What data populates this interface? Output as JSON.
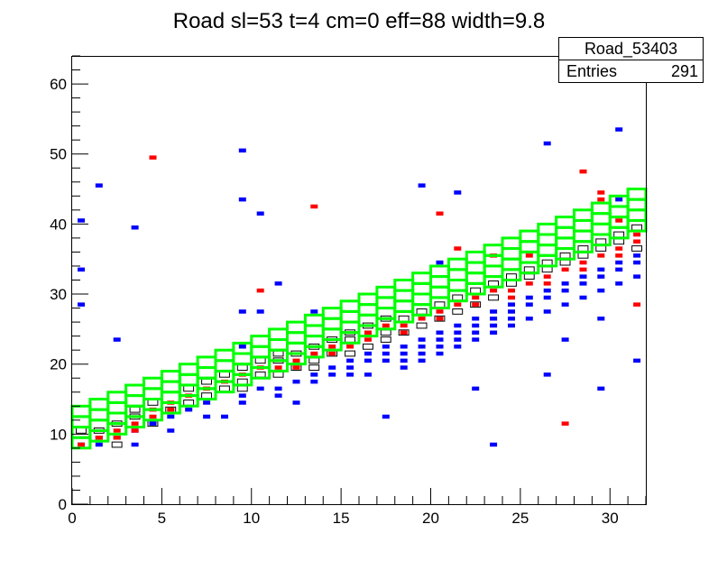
{
  "chart_data": {
    "type": "heatmap",
    "title": "Road sl=53 t=4 cm=0 eff=88 width=9.8",
    "xlabel": "",
    "ylabel": "",
    "xlim": [
      0,
      32
    ],
    "ylim": [
      0,
      64
    ],
    "x_ticks": [
      "0",
      "5",
      "10",
      "15",
      "20",
      "25",
      "30"
    ],
    "y_ticks": [
      "0",
      "10",
      "20",
      "30",
      "40",
      "50",
      "60"
    ],
    "grid": false,
    "stats_box": {
      "name": "Road_53403",
      "entries_label": "Entries",
      "entries_value": "291",
      "placement": "top-right"
    },
    "colors": {
      "road": "#00ff00",
      "blue_hist": "#0000ff",
      "red_hist": "#ff0000",
      "black_hist": "#000000",
      "frame": "#000000"
    },
    "road_band": {
      "start": 8,
      "slope": 1.0,
      "ncells": 4,
      "cell_height": 1.5
    },
    "blue_cells": [
      [
        0,
        40.5
      ],
      [
        0,
        33.5
      ],
      [
        0,
        28.5
      ],
      [
        1,
        45.5
      ],
      [
        2,
        23.5
      ],
      [
        3,
        39.5
      ],
      [
        9,
        50.5
      ],
      [
        9,
        43.5
      ],
      [
        9,
        27.5
      ],
      [
        9,
        22.5
      ],
      [
        10,
        41.5
      ],
      [
        10,
        27.5
      ],
      [
        11,
        31.5
      ],
      [
        13,
        27.5
      ],
      [
        17,
        12.5
      ],
      [
        19,
        45.5
      ],
      [
        20,
        34.5
      ],
      [
        21,
        44.5
      ],
      [
        22,
        16.5
      ],
      [
        23,
        8.5
      ],
      [
        26,
        51.5
      ],
      [
        26,
        18.5
      ],
      [
        27,
        23.5
      ],
      [
        29,
        16.5
      ],
      [
        29,
        26.5
      ],
      [
        30,
        53.5
      ],
      [
        30,
        43.5
      ],
      [
        31,
        20.5
      ],
      [
        0,
        8.5
      ],
      [
        1,
        8.5
      ],
      [
        1,
        9.5
      ],
      [
        2,
        9.5
      ],
      [
        3,
        10.5
      ],
      [
        4,
        11.5
      ],
      [
        5,
        12.5
      ],
      [
        6,
        13.5
      ],
      [
        7,
        14.5
      ],
      [
        8,
        12.5
      ],
      [
        9,
        15.5
      ],
      [
        10,
        16.5
      ],
      [
        11,
        16.5
      ],
      [
        12,
        17.5
      ],
      [
        13,
        18.5
      ],
      [
        14,
        19.5
      ],
      [
        15,
        20.5
      ],
      [
        16,
        21.5
      ],
      [
        17,
        22.5
      ],
      [
        18,
        22.5
      ],
      [
        19,
        23.5
      ],
      [
        20,
        24.5
      ],
      [
        21,
        25.5
      ],
      [
        22,
        26.5
      ],
      [
        23,
        27.5
      ],
      [
        24,
        28.5
      ],
      [
        25,
        29.5
      ],
      [
        26,
        30.5
      ],
      [
        27,
        31.5
      ],
      [
        28,
        32.5
      ],
      [
        29,
        33.5
      ],
      [
        30,
        34.5
      ],
      [
        31,
        35.5
      ],
      [
        15,
        19.5
      ],
      [
        16,
        20.5
      ],
      [
        17,
        21.5
      ],
      [
        18,
        21.5
      ],
      [
        19,
        22.5
      ],
      [
        20,
        23.5
      ],
      [
        21,
        24.5
      ],
      [
        22,
        25.5
      ],
      [
        23,
        26.5
      ],
      [
        24,
        27.5
      ],
      [
        17,
        20.5
      ],
      [
        18,
        20.5
      ],
      [
        19,
        21.5
      ],
      [
        20,
        22.5
      ],
      [
        21,
        23.5
      ],
      [
        22,
        24.5
      ],
      [
        23,
        25.5
      ],
      [
        24,
        26.5
      ],
      [
        25,
        28.5
      ],
      [
        26,
        29.5
      ],
      [
        27,
        30.5
      ],
      [
        28,
        31.5
      ],
      [
        29,
        32.5
      ],
      [
        30,
        33.5
      ],
      [
        31,
        34.5
      ],
      [
        16,
        18.5
      ],
      [
        18,
        19.5
      ],
      [
        20,
        21.5
      ],
      [
        22,
        23.5
      ],
      [
        24,
        25.5
      ],
      [
        3,
        8.5
      ],
      [
        5,
        10.5
      ],
      [
        7,
        12.5
      ],
      [
        9,
        14.5
      ],
      [
        11,
        15.5
      ],
      [
        13,
        17.5
      ],
      [
        14,
        18.5
      ],
      [
        15,
        18.5
      ],
      [
        19,
        20.5
      ],
      [
        21,
        22.5
      ],
      [
        23,
        24.5
      ],
      [
        25,
        26.5
      ],
      [
        27,
        28.5
      ],
      [
        29,
        30.5
      ],
      [
        31,
        32.5
      ],
      [
        28,
        29.5
      ],
      [
        30,
        31.5
      ],
      [
        26,
        27.5
      ],
      [
        12,
        14.5
      ]
    ],
    "red_cells": [
      [
        4,
        49.5
      ],
      [
        10,
        30.5
      ],
      [
        13,
        42.5
      ],
      [
        20,
        41.5
      ],
      [
        21,
        36.5
      ],
      [
        23,
        35.5
      ],
      [
        25,
        35.5
      ],
      [
        27,
        11.5
      ],
      [
        28,
        47.5
      ],
      [
        29,
        44.5
      ],
      [
        29,
        43.5
      ],
      [
        30,
        40.5
      ],
      [
        31,
        28.5
      ],
      [
        0,
        8.5
      ],
      [
        1,
        9.5
      ],
      [
        2,
        10.5
      ],
      [
        2,
        9.5
      ],
      [
        3,
        11.5
      ],
      [
        3,
        10.5
      ],
      [
        4,
        12.5
      ],
      [
        4,
        13.5
      ],
      [
        5,
        14.5
      ],
      [
        6,
        15.5
      ],
      [
        7,
        16.5
      ],
      [
        8,
        17.5
      ],
      [
        9,
        18.5
      ],
      [
        10,
        19.5
      ],
      [
        11,
        19.5
      ],
      [
        12,
        20.5
      ],
      [
        13,
        21.5
      ],
      [
        14,
        22.5
      ],
      [
        15,
        22.5
      ],
      [
        16,
        24.5
      ],
      [
        17,
        25.5
      ],
      [
        18,
        25.5
      ],
      [
        19,
        26.5
      ],
      [
        20,
        27.5
      ],
      [
        21,
        28.5
      ],
      [
        22,
        29.5
      ],
      [
        23,
        30.5
      ],
      [
        24,
        30.5
      ],
      [
        25,
        31.5
      ],
      [
        26,
        32.5
      ],
      [
        27,
        33.5
      ],
      [
        28,
        34.5
      ],
      [
        29,
        35.5
      ],
      [
        30,
        36.5
      ],
      [
        31,
        37.5
      ],
      [
        31,
        38.5
      ],
      [
        12,
        19.5
      ],
      [
        14,
        21.5
      ],
      [
        16,
        23.5
      ],
      [
        18,
        24.5
      ],
      [
        20,
        26.5
      ],
      [
        22,
        28.5
      ],
      [
        24,
        29.5
      ],
      [
        26,
        31.5
      ],
      [
        28,
        33.5
      ],
      [
        30,
        35.5
      ],
      [
        5,
        13.5
      ]
    ],
    "black_cells": [
      [
        0,
        10.5
      ],
      [
        1,
        10.5
      ],
      [
        2,
        11.5
      ],
      [
        2,
        8.5
      ],
      [
        3,
        12.5
      ],
      [
        4,
        11.5
      ],
      [
        5,
        13.5
      ],
      [
        6,
        14.5
      ],
      [
        6,
        16.5
      ],
      [
        7,
        15.5
      ],
      [
        7,
        17.5
      ],
      [
        8,
        16.5
      ],
      [
        8,
        18.5
      ],
      [
        9,
        17.5
      ],
      [
        9,
        19.5
      ],
      [
        9,
        16.5
      ],
      [
        10,
        18.5
      ],
      [
        10,
        20.5
      ],
      [
        11,
        18.5
      ],
      [
        11,
        20.5
      ],
      [
        12,
        19.5
      ],
      [
        12,
        21.5
      ],
      [
        13,
        20.5
      ],
      [
        13,
        22.5
      ],
      [
        14,
        21.5
      ],
      [
        14,
        23.5
      ],
      [
        15,
        21.5
      ],
      [
        15,
        23.5
      ],
      [
        16,
        22.5
      ],
      [
        16,
        25.5
      ],
      [
        17,
        23.5
      ],
      [
        17,
        26.5
      ],
      [
        18,
        24.5
      ],
      [
        18,
        26.5
      ],
      [
        19,
        25.5
      ],
      [
        19,
        27.5
      ],
      [
        20,
        26.5
      ],
      [
        20,
        28.5
      ],
      [
        21,
        27.5
      ],
      [
        21,
        29.5
      ],
      [
        22,
        28.5
      ],
      [
        22,
        30.5
      ],
      [
        23,
        29.5
      ],
      [
        23,
        31.5
      ],
      [
        24,
        31.5
      ],
      [
        24,
        32.5
      ],
      [
        25,
        32.5
      ],
      [
        25,
        33.5
      ],
      [
        26,
        33.5
      ],
      [
        26,
        34.5
      ],
      [
        27,
        34.5
      ],
      [
        27,
        35.5
      ],
      [
        28,
        35.5
      ],
      [
        28,
        36.5
      ],
      [
        29,
        36.5
      ],
      [
        29,
        37.5
      ],
      [
        30,
        37.5
      ],
      [
        30,
        38.5
      ],
      [
        31,
        39.5
      ],
      [
        31,
        36.5
      ],
      [
        3,
        13.5
      ],
      [
        4,
        14.5
      ],
      [
        11,
        21.5
      ],
      [
        13,
        19.5
      ],
      [
        15,
        24.5
      ],
      [
        17,
        24.5
      ]
    ]
  }
}
